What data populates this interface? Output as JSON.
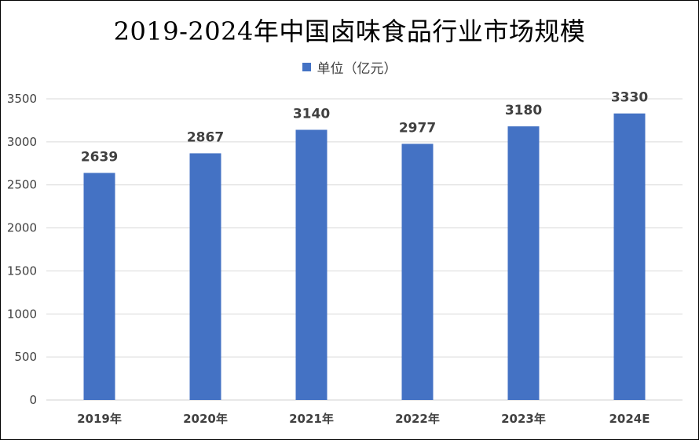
{
  "chart_data": {
    "type": "bar",
    "title": "2019-2024年中国卤味食品行业市场规模",
    "categories": [
      "2019年",
      "2020年",
      "2021年",
      "2022年",
      "2023年",
      "2024E"
    ],
    "series": [
      {
        "name": "单位（亿元）",
        "values": [
          2639,
          2867,
          3140,
          2977,
          3180,
          3330
        ],
        "color": "#4472C4"
      }
    ],
    "xlabel": "",
    "ylabel": "",
    "ylim": [
      0,
      3500
    ],
    "yticks": [
      0,
      500,
      1000,
      1500,
      2000,
      2500,
      3000,
      3500
    ],
    "grid": true,
    "legend_position": "top",
    "data_labels": true
  }
}
